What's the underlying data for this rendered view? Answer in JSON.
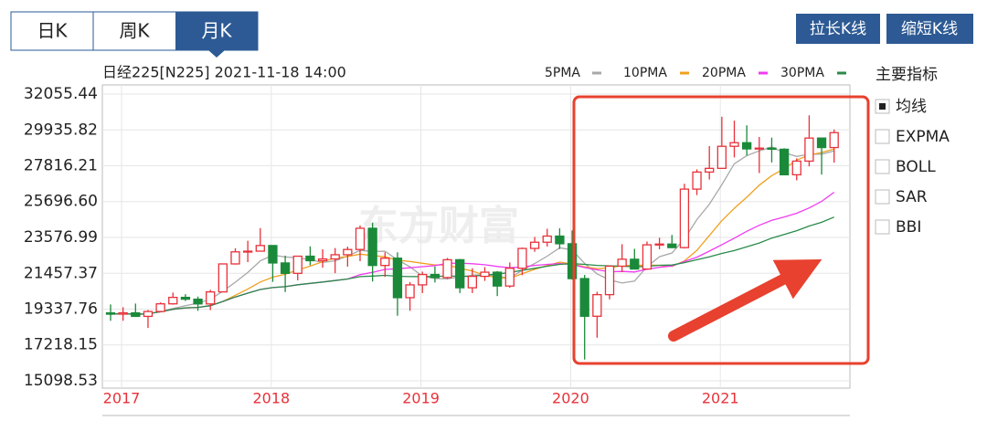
{
  "tabs": [
    "日K",
    "周K",
    "月K"
  ],
  "buttons": [
    "拉长K线",
    "缩短K线"
  ],
  "indicators": {
    "title": "主要指标",
    "items": [
      "均线",
      "EXPMA",
      "BOLL",
      "SAR",
      "BBI"
    ]
  },
  "chart_data": {
    "type": "candlestick",
    "title": "日经225[N225] 2021-11-18 14:00",
    "categories": [
      "2017",
      null,
      null,
      null,
      null,
      null,
      null,
      null,
      null,
      null,
      null,
      null,
      "2018",
      null,
      null,
      null,
      null,
      null,
      null,
      null,
      null,
      null,
      null,
      null,
      "2019",
      null,
      null,
      null,
      null,
      null,
      null,
      null,
      null,
      null,
      null,
      null,
      "2020",
      null,
      null,
      null,
      null,
      null,
      null,
      null,
      null,
      null,
      null,
      null,
      "2021",
      null,
      null,
      null,
      null,
      null,
      null,
      null,
      null,
      null,
      null
    ],
    "open": [
      19114,
      19041,
      19119,
      18909,
      19197,
      19651,
      20033,
      19925,
      19646,
      20356,
      22012,
      22725,
      22765,
      23098,
      22068,
      21454,
      22468,
      22202,
      22305,
      22554,
      22865,
      24120,
      21920,
      22351,
      20015,
      20773,
      21385,
      21206,
      22259,
      20601,
      21276,
      21522,
      20704,
      21756,
      22927,
      23294,
      23657,
      23205,
      21143,
      18917,
      20194,
      21878,
      22288,
      21710,
      23140,
      23185,
      22977,
      26434,
      27444,
      27663,
      28966,
      29179,
      28813,
      28860,
      28792,
      27284,
      28090,
      29453,
      28893
    ],
    "high": [
      19615,
      19450,
      19668,
      19289,
      19736,
      20318,
      20223,
      20080,
      20481,
      22012,
      22937,
      23382,
      24129,
      23048,
      22502,
      22468,
      23050,
      22879,
      22949,
      23032,
      24286,
      24448,
      22699,
      22698,
      20941,
      21556,
      21860,
      22362,
      22307,
      21760,
      21823,
      21588,
      22099,
      22974,
      23608,
      24091,
      24115,
      23995,
      21360,
      20365,
      21916,
      23178,
      22904,
      23338,
      23559,
      23725,
      26751,
      27602,
      28979,
      30714,
      30485,
      30208,
      29518,
      29480,
      28852,
      28253,
      30795,
      29489,
      29960
    ],
    "low": [
      18650,
      18650,
      18890,
      18224,
      19185,
      19600,
      19816,
      19239,
      19280,
      20400,
      21972,
      22117,
      22765,
      20950,
      20347,
      21038,
      21931,
      21788,
      21462,
      21851,
      22172,
      20971,
      21243,
      18948,
      19241,
      20289,
      20911,
      21123,
      20289,
      20289,
      21005,
      20110,
      20601,
      21342,
      22726,
      23044,
      22894,
      21082,
      16358,
      17646,
      19914,
      21529,
      21710,
      21711,
      22878,
      22948,
      22920,
      26083,
      27002,
      27629,
      28308,
      28418,
      27385,
      28012,
      27272,
      26954,
      27781,
      27293,
      28000
    ],
    "close": [
      19041,
      19119,
      18909,
      19197,
      19651,
      20033,
      19925,
      19646,
      20356,
      22012,
      22725,
      22765,
      23098,
      22068,
      21454,
      22468,
      22202,
      22305,
      22554,
      22865,
      24120,
      21920,
      22351,
      20015,
      20773,
      21385,
      21206,
      22259,
      20601,
      21276,
      21522,
      20704,
      21756,
      22927,
      23294,
      23657,
      23205,
      21143,
      18917,
      20194,
      21878,
      22288,
      21710,
      23140,
      23185,
      22977,
      26434,
      27444,
      27663,
      28966,
      29179,
      28813,
      28860,
      28792,
      27284,
      28090,
      29453,
      28893,
      29774
    ],
    "up_color": "#e8313a",
    "down_color": "#1a8a3a",
    "ma": [
      {
        "name": "5PMA",
        "period": 5,
        "color": "#a8a8a8"
      },
      {
        "name": "10PMA",
        "period": 10,
        "color": "#f0a020"
      },
      {
        "name": "20PMA",
        "period": 20,
        "color": "#f03cf0"
      },
      {
        "name": "30PMA",
        "period": 30,
        "color": "#2a8a4a"
      }
    ],
    "ylim": [
      15098.53,
      32055.44
    ],
    "yticks": [
      {
        "value": 15098.53,
        "label": "15098.53"
      },
      {
        "value": 17218.15,
        "label": "17218.15"
      },
      {
        "value": 19337.76,
        "label": "19337.76"
      },
      {
        "value": 21457.37,
        "label": "21457.37"
      },
      {
        "value": 23576.99,
        "label": "23576.99"
      },
      {
        "value": 25696.6,
        "label": "25696.60"
      },
      {
        "value": 27816.21,
        "label": "27816.21"
      },
      {
        "value": 29935.82,
        "label": "29935.82"
      },
      {
        "value": 32055.44,
        "label": "32055.44"
      }
    ],
    "grid": true
  }
}
